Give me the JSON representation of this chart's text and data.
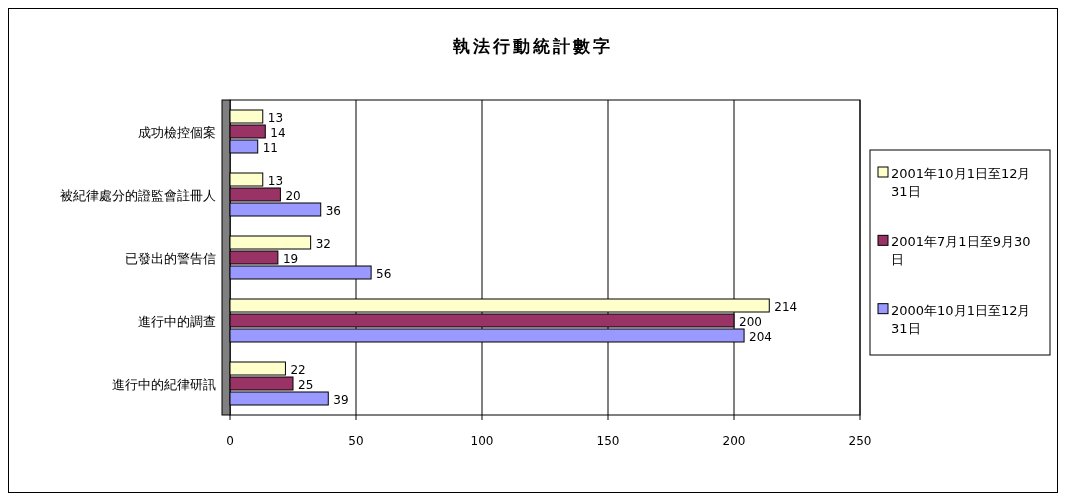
{
  "chart_data": {
    "type": "bar",
    "orientation": "horizontal",
    "title": "執法行動統計數字",
    "categories": [
      "成功檢控個案",
      "被紀律處分的證監會註冊人",
      "已發出的警告信",
      "進行中的調查",
      "進行中的紀律研訊"
    ],
    "series": [
      {
        "name": "2001年10月1日至12月31日",
        "color": "#ffffcc",
        "values": [
          13,
          13,
          32,
          214,
          22
        ]
      },
      {
        "name": "2001年7月1日至9月30日",
        "color": "#993366",
        "values": [
          14,
          20,
          19,
          200,
          25
        ]
      },
      {
        "name": "2000年10月1日至12月31日",
        "color": "#9999ff",
        "values": [
          11,
          36,
          56,
          204,
          39
        ]
      }
    ],
    "xlim": [
      0,
      250
    ],
    "xticks": [
      0,
      50,
      100,
      150,
      200,
      250
    ],
    "grid": "x",
    "legend": "right",
    "data_labels": true
  }
}
